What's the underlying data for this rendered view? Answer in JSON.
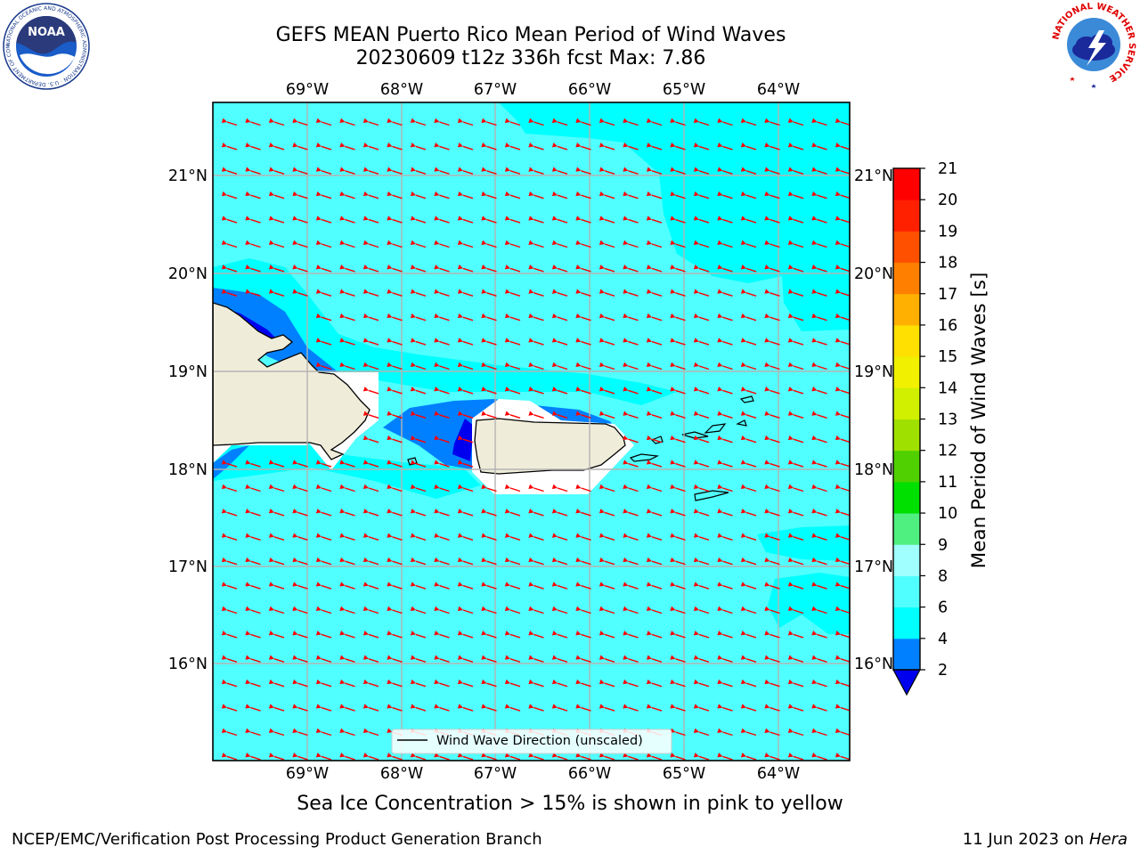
{
  "title": {
    "line1": "GEFS MEAN Puerto Rico Mean Period of Wind Waves",
    "line2": "20230609 t12z 336h fcst   Max: 7.86"
  },
  "logos": {
    "noaa": "NOAA",
    "noaa_ring": "NATIONAL OCEANIC AND ATMOSPHERIC ADMINISTRATION · U.S. DEPARTMENT OF COMMERCE",
    "nws_ring": "NATIONAL WEATHER SERVICE"
  },
  "map": {
    "lon_labels": [
      "69°W",
      "68°W",
      "67°W",
      "66°W",
      "65°W",
      "64°W"
    ],
    "lat_labels": [
      "21°N",
      "20°N",
      "19°N",
      "18°N",
      "17°N",
      "16°N"
    ],
    "legend_label": "Wind Wave Direction (unscaled)",
    "arrow_color": "#ff0000"
  },
  "colorbar": {
    "label": "Mean Period of Wind Waves [s]",
    "ticks": [
      "2",
      "4",
      "6",
      "8",
      "9",
      "10",
      "11",
      "12",
      "13",
      "14",
      "15",
      "16",
      "17",
      "18",
      "19",
      "20",
      "21"
    ],
    "colors": [
      "#0000ee",
      "#0080ff",
      "#00ffff",
      "#50ffff",
      "#a0ffff",
      "#50f080",
      "#00e000",
      "#50d000",
      "#a0e000",
      "#d0f000",
      "#f0f000",
      "#ffe000",
      "#ffb000",
      "#ff8000",
      "#ff5000",
      "#ff2000",
      "#ff0000"
    ]
  },
  "footer": {
    "sea_ice_note": "Sea Ice Concentration > 15% is shown in pink to yellow",
    "producer": "NCEP/EMC/Verification Post Processing Product Generation Branch",
    "date": "11 Jun 2023 on",
    "host": "Hera"
  }
}
